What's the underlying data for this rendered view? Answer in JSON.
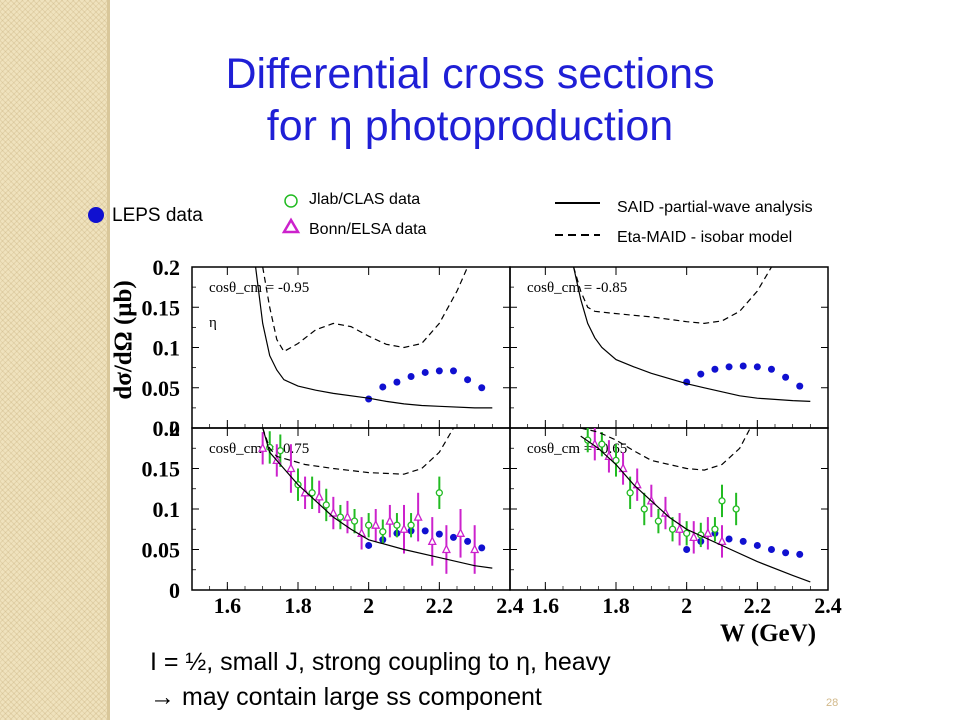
{
  "slide": {
    "title_line1": "Differential cross sections",
    "title_line2": "for η photoproduction",
    "page_number": "28",
    "bottom_line1": "I = ½, small J, strong coupling to η, heavy",
    "bottom_line2": "→ may contain large ss component"
  },
  "legend": {
    "leps": "LEPS data",
    "clas": "Jlab/CLAS data",
    "elsa": "Bonn/ELSA data",
    "said": "SAID -partial-wave analysis",
    "maid": "Eta-MAID - isobar model"
  },
  "colors": {
    "title": "#1f1fd6",
    "leps": "#1010d0",
    "clas": "#22bb22",
    "elsa": "#cc22cc",
    "curve": "#000000"
  },
  "chart_data": [
    {
      "type": "scatter",
      "panel_label": "cosθ_cm = -0.95",
      "particle_label": "η",
      "xlabel": "W (GeV)",
      "ylabel": "dσ/dΩ (μb)",
      "xlim": [
        1.5,
        2.4
      ],
      "ylim": [
        0,
        0.2
      ],
      "x_ticks": [
        "1.6",
        "1.8",
        "2",
        "2.2",
        "2.4"
      ],
      "y_ticks": [
        "0",
        "0.05",
        "0.1",
        "0.15",
        "0.2"
      ],
      "series": [
        {
          "name": "LEPS data",
          "style": "leps",
          "points": [
            [
              2.0,
              0.036
            ],
            [
              2.04,
              0.051
            ],
            [
              2.08,
              0.057
            ],
            [
              2.12,
              0.064
            ],
            [
              2.16,
              0.069
            ],
            [
              2.2,
              0.071
            ],
            [
              2.24,
              0.071
            ],
            [
              2.28,
              0.06
            ],
            [
              2.32,
              0.05
            ]
          ]
        },
        {
          "name": "SAID -partial-wave analysis",
          "style": "said",
          "curve": [
            [
              1.68,
              0.2
            ],
            [
              1.7,
              0.13
            ],
            [
              1.72,
              0.09
            ],
            [
              1.74,
              0.072
            ],
            [
              1.76,
              0.06
            ],
            [
              1.8,
              0.052
            ],
            [
              1.85,
              0.047
            ],
            [
              1.9,
              0.043
            ],
            [
              2.0,
              0.037
            ],
            [
              2.05,
              0.033
            ],
            [
              2.1,
              0.03
            ],
            [
              2.15,
              0.028
            ],
            [
              2.2,
              0.027
            ],
            [
              2.3,
              0.025
            ],
            [
              2.35,
              0.025
            ]
          ]
        },
        {
          "name": "Eta-MAID - isobar model",
          "style": "maid",
          "curve": [
            [
              1.7,
              0.2
            ],
            [
              1.72,
              0.15
            ],
            [
              1.74,
              0.11
            ],
            [
              1.76,
              0.095
            ],
            [
              1.8,
              0.105
            ],
            [
              1.85,
              0.122
            ],
            [
              1.9,
              0.13
            ],
            [
              1.95,
              0.126
            ],
            [
              2.0,
              0.114
            ],
            [
              2.05,
              0.104
            ],
            [
              2.1,
              0.1
            ],
            [
              2.15,
              0.105
            ],
            [
              2.2,
              0.13
            ],
            [
              2.25,
              0.17
            ],
            [
              2.28,
              0.2
            ]
          ]
        }
      ]
    },
    {
      "type": "scatter",
      "panel_label": "cosθ_cm = -0.85",
      "xlabel": "W (GeV)",
      "ylabel": "dσ/dΩ (μb)",
      "xlim": [
        1.5,
        2.4
      ],
      "ylim": [
        0,
        0.2
      ],
      "x_ticks": [
        "1.6",
        "1.8",
        "2",
        "2.2",
        "2.4"
      ],
      "y_ticks": [
        "0",
        "0.05",
        "0.1",
        "0.15",
        "0.2"
      ],
      "series": [
        {
          "name": "LEPS data",
          "style": "leps",
          "points": [
            [
              2.0,
              0.057
            ],
            [
              2.04,
              0.067
            ],
            [
              2.08,
              0.073
            ],
            [
              2.12,
              0.076
            ],
            [
              2.16,
              0.077
            ],
            [
              2.2,
              0.076
            ],
            [
              2.24,
              0.073
            ],
            [
              2.28,
              0.063
            ],
            [
              2.32,
              0.052
            ]
          ]
        },
        {
          "name": "SAID -partial-wave analysis",
          "style": "said",
          "curve": [
            [
              1.68,
              0.2
            ],
            [
              1.7,
              0.16
            ],
            [
              1.72,
              0.13
            ],
            [
              1.74,
              0.112
            ],
            [
              1.76,
              0.1
            ],
            [
              1.8,
              0.085
            ],
            [
              1.85,
              0.076
            ],
            [
              1.9,
              0.068
            ],
            [
              2.0,
              0.055
            ],
            [
              2.05,
              0.05
            ],
            [
              2.1,
              0.045
            ],
            [
              2.15,
              0.04
            ],
            [
              2.2,
              0.037
            ],
            [
              2.3,
              0.034
            ],
            [
              2.35,
              0.033
            ]
          ]
        },
        {
          "name": "Eta-MAID - isobar model",
          "style": "maid",
          "curve": [
            [
              1.68,
              0.2
            ],
            [
              1.7,
              0.17
            ],
            [
              1.72,
              0.15
            ],
            [
              1.74,
              0.145
            ],
            [
              1.78,
              0.143
            ],
            [
              1.85,
              0.14
            ],
            [
              1.9,
              0.138
            ],
            [
              2.0,
              0.132
            ],
            [
              2.05,
              0.13
            ],
            [
              2.1,
              0.133
            ],
            [
              2.15,
              0.145
            ],
            [
              2.2,
              0.17
            ],
            [
              2.24,
              0.2
            ]
          ]
        }
      ]
    },
    {
      "type": "scatter",
      "panel_label": "cosθ_cm = -0.75",
      "xlabel": "W (GeV)",
      "ylabel": "dσ/dΩ (μb)",
      "xlim": [
        1.5,
        2.4
      ],
      "ylim": [
        0,
        0.2
      ],
      "x_ticks": [
        "1.6",
        "1.8",
        "2",
        "2.2",
        "2.4"
      ],
      "y_ticks": [
        "0",
        "0.05",
        "0.1",
        "0.15",
        "0.2"
      ],
      "series": [
        {
          "name": "LEPS data",
          "style": "leps",
          "points": [
            [
              2.0,
              0.055
            ],
            [
              2.04,
              0.062
            ],
            [
              2.08,
              0.07
            ],
            [
              2.12,
              0.073
            ],
            [
              2.16,
              0.073
            ],
            [
              2.2,
              0.069
            ],
            [
              2.24,
              0.065
            ],
            [
              2.28,
              0.06
            ],
            [
              2.32,
              0.052
            ]
          ]
        },
        {
          "name": "Jlab/CLAS data",
          "style": "clas",
          "points": [
            [
              1.72,
              0.176,
              0.02
            ],
            [
              1.75,
              0.172,
              0.02
            ],
            [
              1.8,
              0.13,
              0.02
            ],
            [
              1.84,
              0.12,
              0.02
            ],
            [
              1.88,
              0.105,
              0.02
            ],
            [
              1.92,
              0.09,
              0.015
            ],
            [
              1.96,
              0.085,
              0.015
            ],
            [
              2.0,
              0.08,
              0.015
            ],
            [
              2.04,
              0.072,
              0.015
            ],
            [
              2.08,
              0.08,
              0.015
            ],
            [
              2.12,
              0.08,
              0.015
            ],
            [
              2.2,
              0.12,
              0.02
            ]
          ]
        },
        {
          "name": "Bonn/ELSA data",
          "style": "elsa",
          "points": [
            [
              1.7,
              0.175,
              0.02
            ],
            [
              1.74,
              0.16,
              0.02
            ],
            [
              1.78,
              0.15,
              0.03
            ],
            [
              1.82,
              0.12,
              0.02
            ],
            [
              1.86,
              0.115,
              0.02
            ],
            [
              1.9,
              0.095,
              0.02
            ],
            [
              1.94,
              0.09,
              0.02
            ],
            [
              1.98,
              0.07,
              0.02
            ],
            [
              2.02,
              0.08,
              0.02
            ],
            [
              2.06,
              0.085,
              0.02
            ],
            [
              2.1,
              0.075,
              0.03
            ],
            [
              2.14,
              0.09,
              0.03
            ],
            [
              2.18,
              0.06,
              0.03
            ],
            [
              2.22,
              0.05,
              0.03
            ],
            [
              2.26,
              0.07,
              0.03
            ],
            [
              2.3,
              0.05,
              0.03
            ]
          ]
        },
        {
          "name": "SAID -partial-wave analysis",
          "style": "said",
          "curve": [
            [
              1.7,
              0.2
            ],
            [
              1.72,
              0.17
            ],
            [
              1.75,
              0.155
            ],
            [
              1.8,
              0.13
            ],
            [
              1.85,
              0.11
            ],
            [
              1.9,
              0.09
            ],
            [
              1.95,
              0.075
            ],
            [
              2.0,
              0.062
            ],
            [
              2.1,
              0.05
            ],
            [
              2.2,
              0.04
            ],
            [
              2.3,
              0.03
            ],
            [
              2.35,
              0.027
            ]
          ]
        },
        {
          "name": "Eta-MAID - isobar model",
          "style": "maid",
          "curve": [
            [
              1.7,
              0.2
            ],
            [
              1.72,
              0.175
            ],
            [
              1.74,
              0.165
            ],
            [
              1.78,
              0.16
            ],
            [
              1.82,
              0.155
            ],
            [
              1.9,
              0.15
            ],
            [
              2.0,
              0.145
            ],
            [
              2.1,
              0.143
            ],
            [
              2.15,
              0.15
            ],
            [
              2.2,
              0.17
            ],
            [
              2.24,
              0.2
            ]
          ]
        }
      ]
    },
    {
      "type": "scatter",
      "panel_label": "cosθ_cm = -0.65",
      "xlabel": "W (GeV)",
      "ylabel": "dσ/dΩ (μb)",
      "xlim": [
        1.5,
        2.4
      ],
      "ylim": [
        0,
        0.2
      ],
      "x_ticks": [
        "1.6",
        "1.8",
        "2",
        "2.2",
        "2.4"
      ],
      "y_ticks": [
        "0",
        "0.05",
        "0.1",
        "0.15",
        "0.2"
      ],
      "series": [
        {
          "name": "LEPS data",
          "style": "leps",
          "points": [
            [
              2.0,
              0.05
            ],
            [
              2.04,
              0.06
            ],
            [
              2.08,
              0.07
            ],
            [
              2.12,
              0.063
            ],
            [
              2.16,
              0.06
            ],
            [
              2.2,
              0.055
            ],
            [
              2.24,
              0.05
            ],
            [
              2.28,
              0.046
            ],
            [
              2.32,
              0.044
            ]
          ]
        },
        {
          "name": "Jlab/CLAS data",
          "style": "clas",
          "points": [
            [
              1.72,
              0.185,
              0.015
            ],
            [
              1.76,
              0.18,
              0.015
            ],
            [
              1.8,
              0.16,
              0.02
            ],
            [
              1.84,
              0.12,
              0.02
            ],
            [
              1.88,
              0.1,
              0.02
            ],
            [
              1.92,
              0.085,
              0.015
            ],
            [
              1.96,
              0.075,
              0.015
            ],
            [
              2.0,
              0.07,
              0.015
            ],
            [
              2.04,
              0.068,
              0.015
            ],
            [
              2.08,
              0.075,
              0.015
            ],
            [
              2.1,
              0.11,
              0.02
            ],
            [
              2.14,
              0.1,
              0.02
            ]
          ]
        },
        {
          "name": "Bonn/ELSA data",
          "style": "elsa",
          "points": [
            [
              1.74,
              0.18,
              0.02
            ],
            [
              1.78,
              0.165,
              0.02
            ],
            [
              1.82,
              0.15,
              0.02
            ],
            [
              1.86,
              0.13,
              0.02
            ],
            [
              1.9,
              0.11,
              0.02
            ],
            [
              1.94,
              0.095,
              0.02
            ],
            [
              1.98,
              0.075,
              0.02
            ],
            [
              2.02,
              0.065,
              0.02
            ],
            [
              2.06,
              0.07,
              0.02
            ],
            [
              2.1,
              0.06,
              0.02
            ]
          ]
        },
        {
          "name": "SAID -partial-wave analysis",
          "style": "said",
          "curve": [
            [
              1.7,
              0.19
            ],
            [
              1.75,
              0.175
            ],
            [
              1.8,
              0.155
            ],
            [
              1.85,
              0.13
            ],
            [
              1.9,
              0.11
            ],
            [
              1.95,
              0.09
            ],
            [
              2.0,
              0.075
            ],
            [
              2.1,
              0.055
            ],
            [
              2.2,
              0.035
            ],
            [
              2.3,
              0.018
            ],
            [
              2.35,
              0.01
            ]
          ]
        },
        {
          "name": "Eta-MAID - isobar model",
          "style": "maid",
          "curve": [
            [
              1.7,
              0.2
            ],
            [
              1.75,
              0.195
            ],
            [
              1.8,
              0.185
            ],
            [
              1.85,
              0.172
            ],
            [
              1.9,
              0.16
            ],
            [
              2.0,
              0.15
            ],
            [
              2.05,
              0.148
            ],
            [
              2.1,
              0.155
            ],
            [
              2.15,
              0.175
            ],
            [
              2.18,
              0.2
            ]
          ]
        }
      ]
    }
  ]
}
